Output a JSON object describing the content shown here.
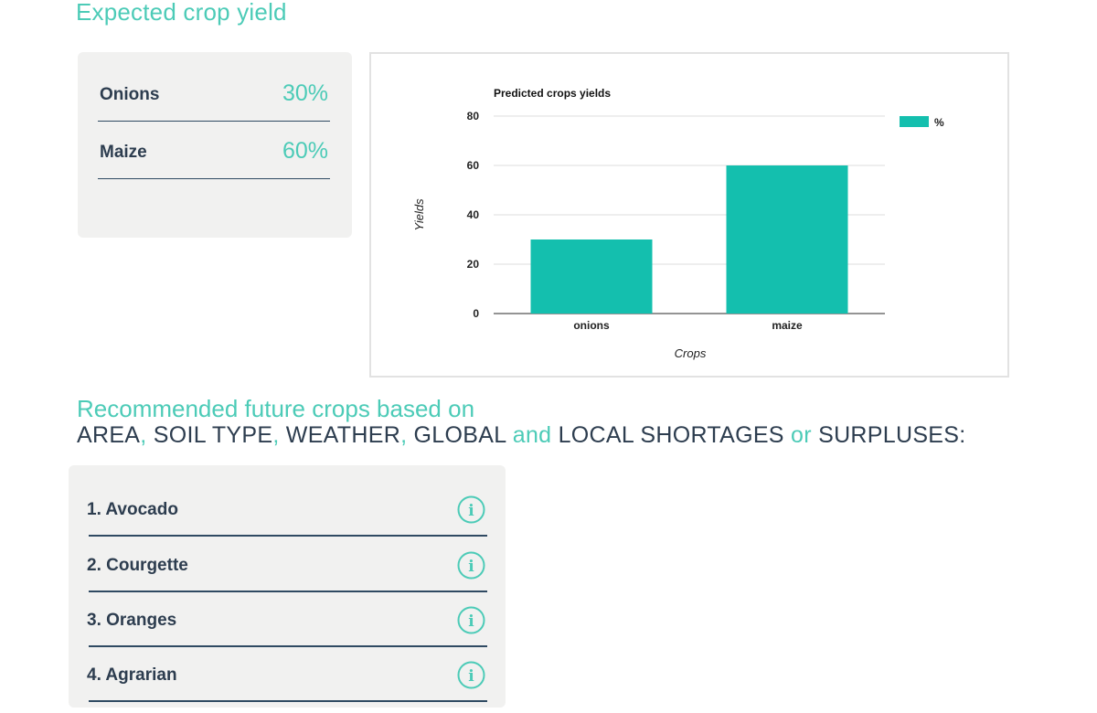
{
  "expected": {
    "title": "Expected crop yield",
    "items": [
      {
        "name": "Onions",
        "value": "30%"
      },
      {
        "name": "Maize",
        "value": "60%"
      }
    ]
  },
  "chart_data": {
    "type": "bar",
    "title": "Predicted crops yields",
    "categories": [
      "onions",
      "maize"
    ],
    "series": [
      {
        "name": "%",
        "values": [
          30,
          60
        ]
      }
    ],
    "xlabel": "Crops",
    "ylabel": "Yields",
    "ylim": [
      0,
      80
    ],
    "yticks": [
      0,
      20,
      40,
      60,
      80
    ],
    "grid": true,
    "legend": "top-right",
    "color": "#14bfae"
  },
  "recommended": {
    "title": "Recommended future crops based on",
    "criteria": [
      {
        "text": "AREA",
        "accent": false
      },
      {
        "text": ",",
        "accent": true
      },
      {
        "text": " SOIL TYPE",
        "accent": false
      },
      {
        "text": ",",
        "accent": true
      },
      {
        "text": " WEATHER",
        "accent": false
      },
      {
        "text": ",",
        "accent": true
      },
      {
        "text": " GLOBAL ",
        "accent": false
      },
      {
        "text": "and",
        "accent": true
      },
      {
        "text": " LOCAL SHORTAGES ",
        "accent": false
      },
      {
        "text": "or",
        "accent": true
      },
      {
        "text": " SURPLUSES:",
        "accent": false
      }
    ],
    "items": [
      {
        "label": "1. Avocado",
        "icon": "info-icon"
      },
      {
        "label": "2. Courgette",
        "icon": "info-icon"
      },
      {
        "label": "3. Oranges",
        "icon": "info-icon"
      },
      {
        "label": "4. Agrarian",
        "icon": "info-icon"
      }
    ]
  },
  "colors": {
    "accent": "#4ccbb7",
    "bar": "#14bfae",
    "text_dark": "#2d3d4f",
    "divider": "#2f4a62",
    "card_bg": "#f1f1f0"
  }
}
